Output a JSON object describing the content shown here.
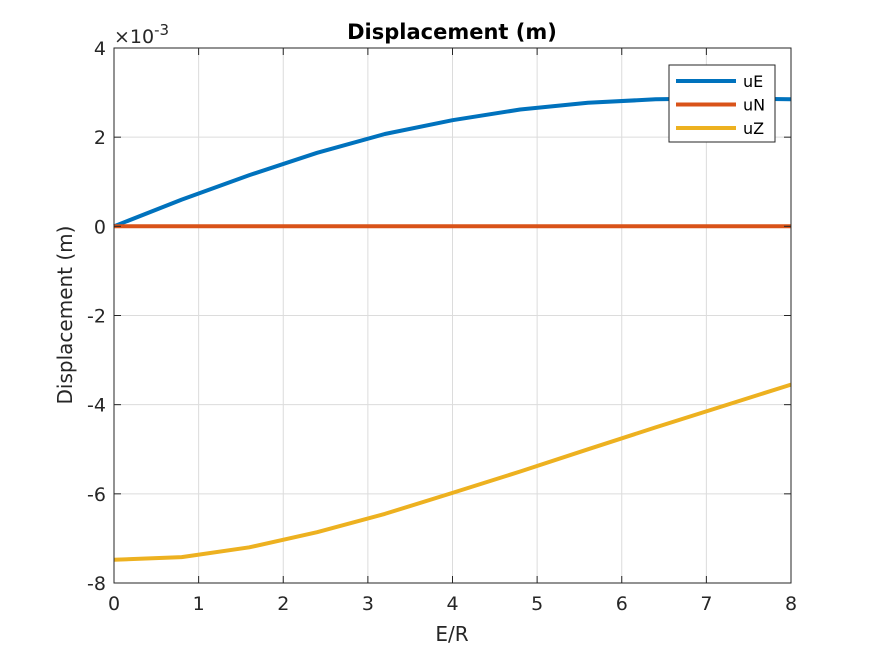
{
  "chart_data": {
    "type": "line",
    "title": "Displacement (m)",
    "xlabel": "E/R",
    "ylabel": "Displacement (m)",
    "exponent_label": "×10",
    "exponent_power": "-3",
    "xlim": [
      0,
      8
    ],
    "ylim": [
      -8,
      4
    ],
    "xticks": [
      "0",
      "1",
      "2",
      "3",
      "4",
      "5",
      "6",
      "7",
      "8"
    ],
    "yticks": [
      "-8",
      "-6",
      "-4",
      "-2",
      "0",
      "2",
      "4"
    ],
    "grid": true,
    "legend_position": "top-right",
    "x": [
      0,
      0.8,
      1.6,
      2.4,
      3.2,
      4.0,
      4.8,
      5.6,
      6.4,
      7.2,
      8.0
    ],
    "series": [
      {
        "name": "uE",
        "color": "#0072BD",
        "values": [
          0,
          0.6,
          1.15,
          1.65,
          2.07,
          2.38,
          2.62,
          2.77,
          2.85,
          2.87,
          2.85
        ]
      },
      {
        "name": "uN",
        "color": "#D95319",
        "values": [
          0,
          0,
          0,
          0,
          0,
          0,
          0,
          0,
          0,
          0,
          0
        ]
      },
      {
        "name": "uZ",
        "color": "#EDB120",
        "values": [
          -7.48,
          -7.42,
          -7.2,
          -6.86,
          -6.45,
          -5.98,
          -5.5,
          -5.0,
          -4.51,
          -4.03,
          -3.55
        ]
      }
    ]
  }
}
